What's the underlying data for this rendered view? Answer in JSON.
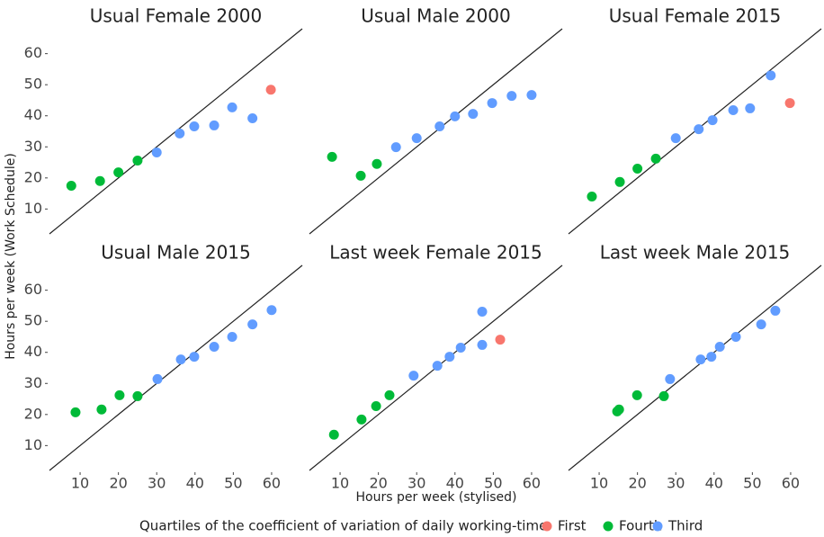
{
  "chart_data": [
    {
      "type": "scatter",
      "title": "Usual Female 2000",
      "series": [
        {
          "name": "First",
          "color": "#f8766d",
          "x": [
            59.8
          ],
          "values": [
            48.4
          ]
        },
        {
          "name": "Fourth",
          "color": "#00ba38",
          "x": [
            7.7,
            15.2,
            20,
            25
          ],
          "values": [
            17.5,
            19,
            21.8,
            25.6
          ]
        },
        {
          "name": "Third",
          "color": "#619cff",
          "x": [
            30,
            36,
            39.8,
            45,
            49.7,
            55
          ],
          "values": [
            28.2,
            34.3,
            36.6,
            36.9,
            42.7,
            39.2
          ]
        }
      ]
    },
    {
      "type": "scatter",
      "title": "Usual Male 2000",
      "series": [
        {
          "name": "Fourth",
          "color": "#00ba38",
          "x": [
            7.9,
            15.4,
            19.6
          ],
          "values": [
            26.8,
            20.7,
            24.5
          ]
        },
        {
          "name": "Third",
          "color": "#619cff",
          "x": [
            24.6,
            30,
            36,
            40,
            44.7,
            49.7,
            54.8,
            60
          ],
          "values": [
            29.9,
            32.8,
            36.6,
            39.8,
            40.6,
            44.1,
            46.4,
            46.7
          ]
        }
      ]
    },
    {
      "type": "scatter",
      "title": "Usual Female 2015",
      "series": [
        {
          "name": "First",
          "color": "#f8766d",
          "x": [
            59.8
          ],
          "values": [
            44.1
          ]
        },
        {
          "name": "Fourth",
          "color": "#00ba38",
          "x": [
            8.1,
            15.4,
            20,
            24.8
          ],
          "values": [
            14,
            18.7,
            23,
            26.2
          ]
        },
        {
          "name": "Third",
          "color": "#619cff",
          "x": [
            30,
            36,
            39.6,
            45,
            49.4,
            54.8
          ],
          "values": [
            32.8,
            35.7,
            38.6,
            41.8,
            42.4,
            53
          ]
        }
      ]
    },
    {
      "type": "scatter",
      "title": "Usual Male 2015",
      "series": [
        {
          "name": "Fourth",
          "color": "#00ba38",
          "x": [
            8.8,
            15.6,
            20.3,
            25
          ],
          "values": [
            20.7,
            21.6,
            26.2,
            25.9
          ]
        },
        {
          "name": "Third",
          "color": "#619cff",
          "x": [
            30.2,
            36.3,
            39.8,
            45,
            49.7,
            55,
            60
          ],
          "values": [
            31.4,
            37.7,
            38.6,
            41.8,
            45,
            49,
            53.6
          ]
        }
      ]
    },
    {
      "type": "scatter",
      "title": "Last week Female 2015",
      "series": [
        {
          "name": "First",
          "color": "#f8766d",
          "x": [
            51.8
          ],
          "values": [
            44.1
          ]
        },
        {
          "name": "Fourth",
          "color": "#00ba38",
          "x": [
            8.4,
            15.6,
            19.4,
            22.9
          ],
          "values": [
            13.5,
            18.4,
            22.7,
            26.2
          ]
        },
        {
          "name": "Third",
          "color": "#619cff",
          "x": [
            29.2,
            35.4,
            38.6,
            41.5,
            47.1,
            47.1
          ],
          "values": [
            32.5,
            35.7,
            38.6,
            41.5,
            42.4,
            53.1
          ]
        }
      ]
    },
    {
      "type": "scatter",
      "title": "Last week Male 2015",
      "series": [
        {
          "name": "Fourth",
          "color": "#00ba38",
          "x": [
            14.7,
            15.2,
            19.9,
            26.9
          ],
          "values": [
            21,
            21.6,
            26.2,
            25.9
          ]
        },
        {
          "name": "Third",
          "color": "#619cff",
          "x": [
            28.5,
            36.5,
            39.3,
            41.5,
            45.7,
            52.3,
            56
          ],
          "values": [
            31.4,
            37.7,
            38.6,
            41.8,
            45,
            49,
            53.4
          ]
        }
      ]
    }
  ],
  "axes": {
    "xlabel": "Hours per week (stylised)",
    "ylabel": "Hours per week (Work Schedule)",
    "xlim": [
      2,
      68
    ],
    "ylim": [
      2,
      68
    ],
    "xticks": [
      10,
      20,
      30,
      40,
      50,
      60
    ],
    "yticks": [
      10,
      20,
      30,
      40,
      50,
      60
    ]
  },
  "legend": {
    "title": "Quartiles of the coefficient of variation of daily working-time",
    "items": [
      {
        "name": "First",
        "color": "#f8766d"
      },
      {
        "name": "Fourth",
        "color": "#00ba38"
      },
      {
        "name": "Third",
        "color": "#619cff"
      }
    ]
  }
}
